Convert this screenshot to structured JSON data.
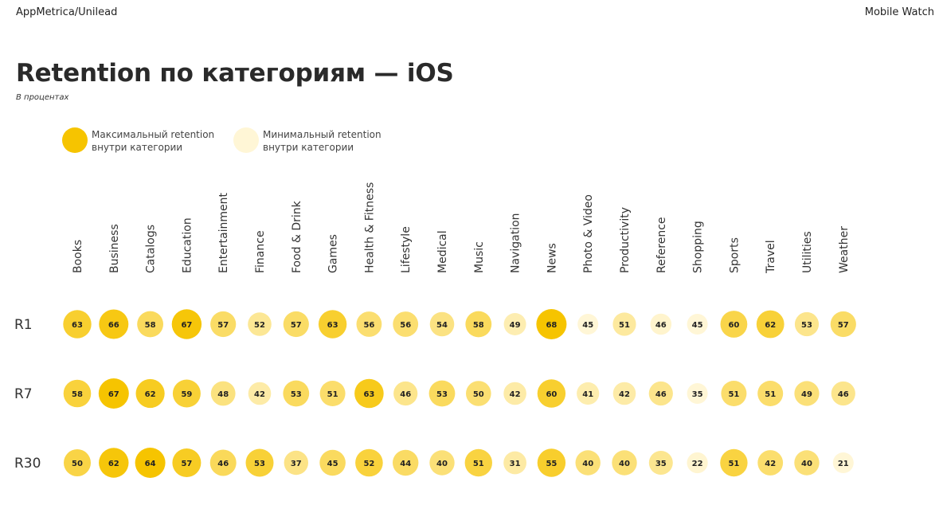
{
  "header": {
    "source": "AppMetrica/Unilead",
    "brand": "Mobile Watch"
  },
  "colors": {
    "max": "#f6c400",
    "min": "#fff6d6"
  },
  "legend": {
    "max_label": "Максимальный retention внутри категории",
    "min_label": "Минимальный retention внутри категории"
  },
  "chart_data": {
    "type": "bubble-grid",
    "title": "Retention по категориям — iOS",
    "subtitle": "В процентах",
    "categories": [
      "Books",
      "Business",
      "Catalogs",
      "Education",
      "Entertainment",
      "Finance",
      "Food & Drink",
      "Games",
      "Health & Fitness",
      "Lifestyle",
      "Medical",
      "Music",
      "Navigation",
      "News",
      "Photo & Video",
      "Productivity",
      "Reference",
      "Shopping",
      "Sports",
      "Travel",
      "Utilities",
      "Weather"
    ],
    "series": [
      {
        "name": "R1",
        "values": [
          63,
          66,
          58,
          67,
          57,
          52,
          57,
          63,
          56,
          56,
          54,
          58,
          49,
          68,
          45,
          51,
          46,
          45,
          60,
          62,
          53,
          57
        ]
      },
      {
        "name": "R7",
        "values": [
          58,
          67,
          62,
          59,
          48,
          42,
          53,
          51,
          63,
          46,
          53,
          50,
          42,
          60,
          41,
          42,
          46,
          35,
          51,
          51,
          49,
          46
        ]
      },
      {
        "name": "R30",
        "values": [
          50,
          62,
          64,
          57,
          46,
          53,
          37,
          45,
          52,
          44,
          40,
          51,
          31,
          55,
          40,
          40,
          35,
          22,
          51,
          42,
          40,
          21
        ]
      }
    ]
  }
}
